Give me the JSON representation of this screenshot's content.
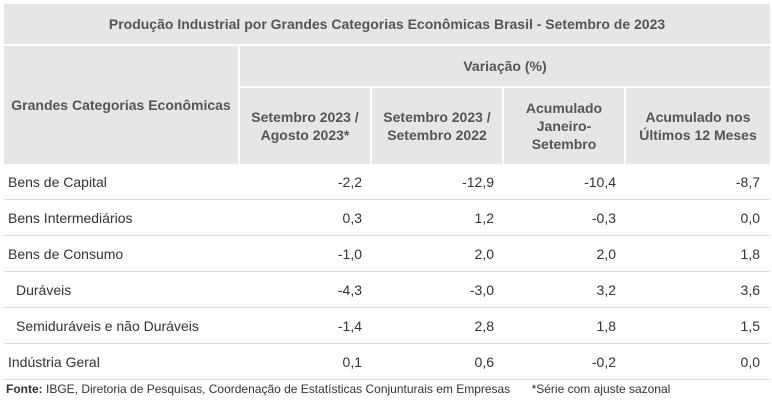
{
  "table": {
    "title": "Produção Industrial por Grandes Categorias Econômicas  Brasil - Setembro de 2023",
    "row_header": "Grandes Categorias Econômicas",
    "group_header": "Variação (%)",
    "columns": [
      [
        "Setembro 2023 /",
        "Agosto 2023*"
      ],
      [
        "Setembro 2023 /",
        "Setembro 2022"
      ],
      [
        "Acumulado",
        "Janeiro-",
        "Setembro"
      ],
      [
        "Acumulado nos",
        "Últimos 12 Meses"
      ]
    ],
    "rows": [
      {
        "label": "Bens de Capital",
        "values": [
          "-2,2",
          "-12,9",
          "-10,4",
          "-8,7"
        ]
      },
      {
        "label": "Bens Intermediários",
        "values": [
          "0,3",
          "1,2",
          "-0,3",
          "0,0"
        ]
      },
      {
        "label": "Bens de Consumo",
        "values": [
          "-1,0",
          "2,0",
          "2,0",
          "1,8"
        ]
      },
      {
        "label": "Duráveis",
        "values": [
          "-4,3",
          "-3,0",
          "3,2",
          "3,6"
        ]
      },
      {
        "label": "Semiduráveis e não Duráveis",
        "values": [
          "-1,4",
          "2,8",
          "1,8",
          "1,5"
        ]
      },
      {
        "label": "Indústria Geral",
        "values": [
          "0,1",
          "0,6",
          "-0,2",
          "0,0"
        ]
      }
    ]
  },
  "footnote": {
    "source_label": "Fonte:",
    "source_text": "IBGE, Diretoria de Pesquisas, Coordenação de Estatísticas Conjunturais em Empresas",
    "note": "*Série com ajuste sazonal"
  }
}
